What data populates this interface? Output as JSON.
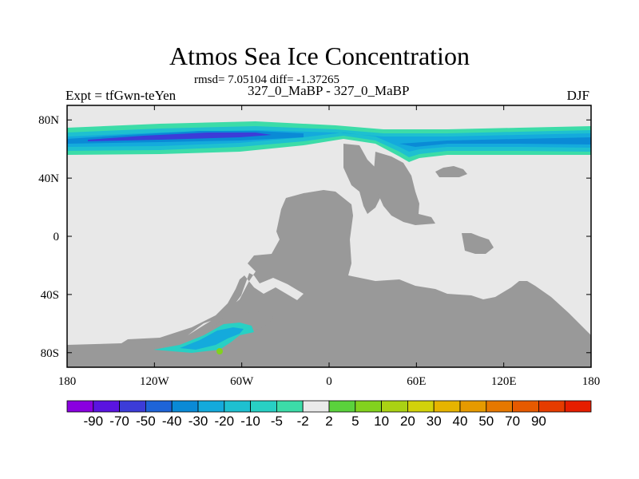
{
  "chart_data": {
    "type": "heatmap",
    "title": "Atmos Sea Ice Concentration",
    "stats_text": "rmsd= 7.05104  diff= -1.37265",
    "experiment_diff": "327_0_MaBP - 327_0_MaBP",
    "left_label": "Expt = tfGwn-teYen",
    "right_label": "DJF",
    "x_axis": {
      "range": [
        -180,
        180
      ],
      "ticks": [
        {
          "value": -180,
          "label": "180"
        },
        {
          "value": -120,
          "label": "120W"
        },
        {
          "value": -60,
          "label": "60W"
        },
        {
          "value": 0,
          "label": "0"
        },
        {
          "value": 60,
          "label": "60E"
        },
        {
          "value": 120,
          "label": "120E"
        },
        {
          "value": 180,
          "label": "180"
        }
      ]
    },
    "y_axis": {
      "range": [
        -90,
        90
      ],
      "ticks": [
        {
          "value": 80,
          "label": "80N"
        },
        {
          "value": 40,
          "label": "40N"
        },
        {
          "value": 0,
          "label": "0"
        },
        {
          "value": -40,
          "label": "40S"
        },
        {
          "value": -80,
          "label": "80S"
        }
      ]
    },
    "colorbar": {
      "colors": [
        "#8a00e0",
        "#5a14e0",
        "#3c3cd8",
        "#1e64d8",
        "#0a8ad6",
        "#14aadc",
        "#1ec0d0",
        "#28d0c4",
        "#3cdca8",
        "#eaeaea",
        "#5ad23c",
        "#82d21e",
        "#aad214",
        "#d2d20a",
        "#e6b400",
        "#e69a00",
        "#e67800",
        "#e65a00",
        "#e63c00",
        "#e61e00"
      ],
      "labels": [
        "-90",
        "-70",
        "-50",
        "-40",
        "-30",
        "-20",
        "-10",
        "-5",
        "-2",
        "2",
        "5",
        "10",
        "20",
        "30",
        "40",
        "50",
        "70",
        "90"
      ]
    },
    "map_colors": {
      "background": "#e8e8e8",
      "land": "#999999"
    }
  }
}
